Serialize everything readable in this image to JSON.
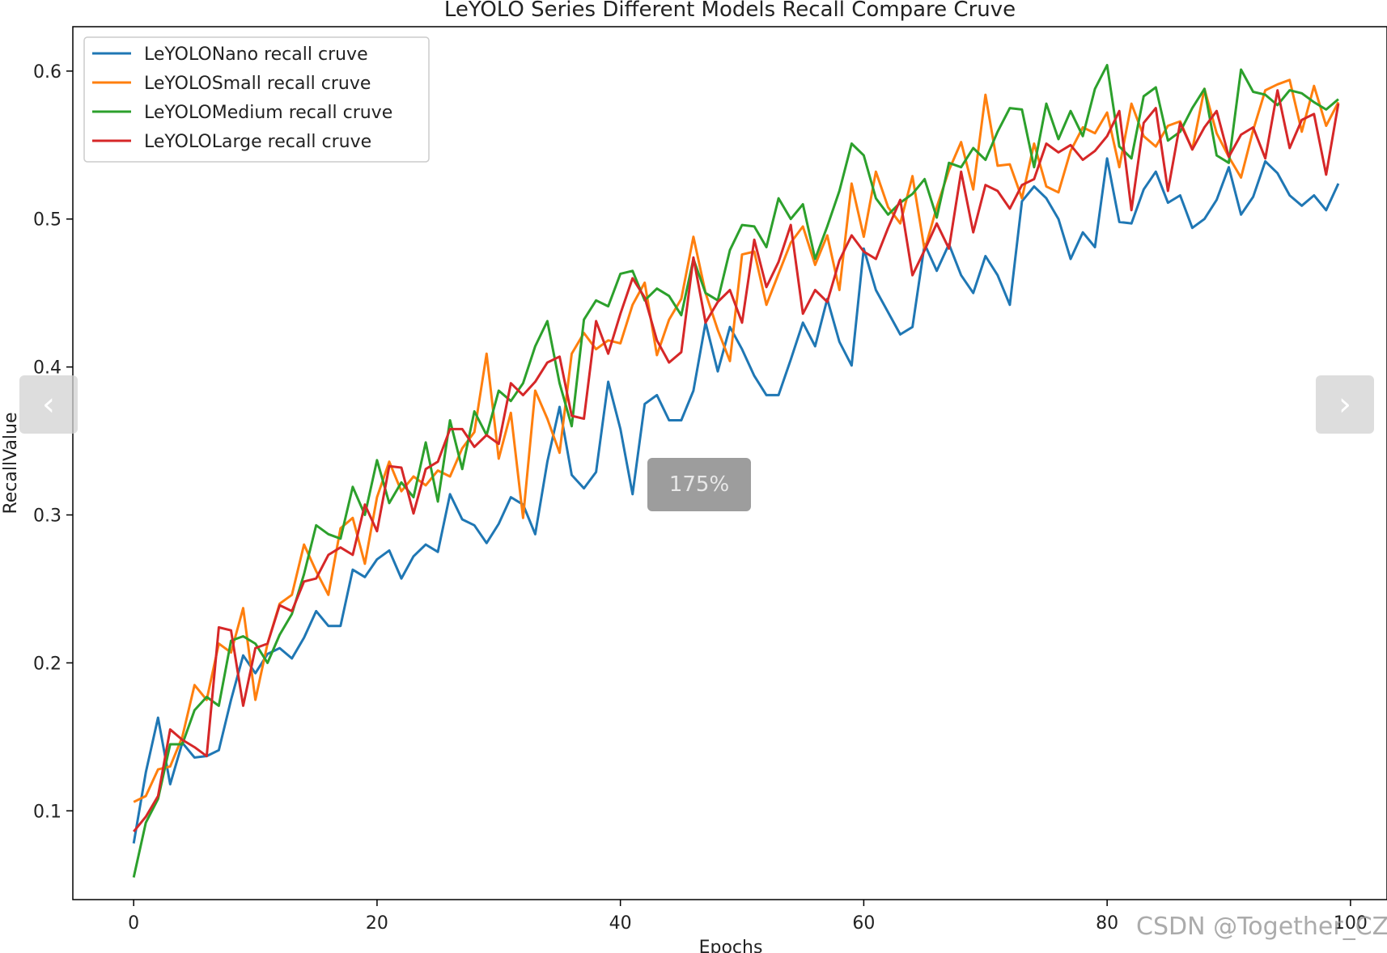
{
  "chart_data": {
    "type": "line",
    "title": "LeYOLO Series Different Models Recall Compare Cruve",
    "xlabel": "Epochs",
    "ylabel": "RecallValue",
    "xlim": [
      -5,
      103
    ],
    "ylim": [
      0.04,
      0.63
    ],
    "xticks": [
      0,
      20,
      40,
      60,
      80,
      100
    ],
    "yticks": [
      0.1,
      0.2,
      0.3,
      0.4,
      0.5,
      0.6
    ],
    "grid": false,
    "legend_position": "top-left",
    "series": [
      {
        "name": "LeYOLONano recall cruve",
        "color": "#1f77b4",
        "values": [
          0.078,
          0.126,
          0.163,
          0.118,
          0.146,
          0.136,
          0.137,
          0.141,
          0.175,
          0.205,
          0.193,
          0.206,
          0.21,
          0.203,
          0.217,
          0.235,
          0.225,
          0.225,
          0.263,
          0.258,
          0.27,
          0.276,
          0.257,
          0.272,
          0.28,
          0.275,
          0.314,
          0.297,
          0.293,
          0.281,
          0.294,
          0.312,
          0.307,
          0.287,
          0.336,
          0.373,
          0.327,
          0.318,
          0.329,
          0.39,
          0.358,
          0.314,
          0.375,
          0.381,
          0.364,
          0.364,
          0.384,
          0.43,
          0.397,
          0.427,
          0.412,
          0.394,
          0.381,
          0.381,
          0.405,
          0.43,
          0.414,
          0.446,
          0.417,
          0.401,
          0.48,
          0.452,
          0.437,
          0.422,
          0.427,
          0.483,
          0.465,
          0.483,
          0.462,
          0.45,
          0.475,
          0.462,
          0.442,
          0.512,
          0.522,
          0.514,
          0.5,
          0.473,
          0.491,
          0.481,
          0.541,
          0.498,
          0.497,
          0.52,
          0.532,
          0.511,
          0.516,
          0.494,
          0.5,
          0.513,
          0.535,
          0.503,
          0.515,
          0.539,
          0.531,
          0.516,
          0.509,
          0.516,
          0.506,
          0.524
        ]
      },
      {
        "name": "LeYOLOSmall recall cruve",
        "color": "#ff7f0e",
        "values": [
          0.106,
          0.11,
          0.128,
          0.13,
          0.15,
          0.185,
          0.175,
          0.213,
          0.207,
          0.237,
          0.175,
          0.213,
          0.24,
          0.246,
          0.28,
          0.262,
          0.246,
          0.291,
          0.298,
          0.267,
          0.312,
          0.336,
          0.316,
          0.326,
          0.32,
          0.33,
          0.326,
          0.345,
          0.356,
          0.409,
          0.338,
          0.369,
          0.298,
          0.384,
          0.365,
          0.342,
          0.409,
          0.423,
          0.412,
          0.418,
          0.416,
          0.442,
          0.457,
          0.408,
          0.432,
          0.446,
          0.488,
          0.45,
          0.425,
          0.404,
          0.476,
          0.478,
          0.442,
          0.463,
          0.484,
          0.495,
          0.469,
          0.489,
          0.452,
          0.524,
          0.488,
          0.532,
          0.508,
          0.497,
          0.529,
          0.479,
          0.508,
          0.533,
          0.552,
          0.52,
          0.584,
          0.536,
          0.537,
          0.514,
          0.551,
          0.522,
          0.518,
          0.546,
          0.562,
          0.558,
          0.572,
          0.535,
          0.578,
          0.556,
          0.549,
          0.563,
          0.566,
          0.547,
          0.588,
          0.558,
          0.542,
          0.528,
          0.56,
          0.587,
          0.591,
          0.594,
          0.559,
          0.59,
          0.563,
          0.579
        ]
      },
      {
        "name": "LeYOLOMedium recall cruve",
        "color": "#2ca02c",
        "values": [
          0.055,
          0.092,
          0.108,
          0.145,
          0.145,
          0.168,
          0.177,
          0.171,
          0.215,
          0.218,
          0.213,
          0.2,
          0.219,
          0.233,
          0.26,
          0.293,
          0.287,
          0.284,
          0.319,
          0.3,
          0.337,
          0.308,
          0.322,
          0.312,
          0.349,
          0.309,
          0.364,
          0.331,
          0.37,
          0.354,
          0.384,
          0.377,
          0.389,
          0.414,
          0.431,
          0.389,
          0.36,
          0.432,
          0.445,
          0.441,
          0.463,
          0.465,
          0.445,
          0.453,
          0.448,
          0.435,
          0.473,
          0.45,
          0.445,
          0.479,
          0.496,
          0.495,
          0.481,
          0.514,
          0.5,
          0.51,
          0.473,
          0.495,
          0.519,
          0.551,
          0.543,
          0.514,
          0.503,
          0.511,
          0.517,
          0.527,
          0.501,
          0.538,
          0.535,
          0.548,
          0.54,
          0.559,
          0.575,
          0.574,
          0.535,
          0.578,
          0.554,
          0.573,
          0.556,
          0.588,
          0.604,
          0.549,
          0.541,
          0.583,
          0.589,
          0.553,
          0.559,
          0.575,
          0.588,
          0.543,
          0.538,
          0.601,
          0.586,
          0.584,
          0.577,
          0.587,
          0.585,
          0.579,
          0.574,
          0.581
        ]
      },
      {
        "name": "LeYOLOLarge recall cruve",
        "color": "#d62728",
        "values": [
          0.086,
          0.096,
          0.11,
          0.155,
          0.148,
          0.143,
          0.137,
          0.224,
          0.222,
          0.171,
          0.21,
          0.213,
          0.239,
          0.235,
          0.255,
          0.257,
          0.273,
          0.278,
          0.273,
          0.307,
          0.289,
          0.333,
          0.332,
          0.301,
          0.331,
          0.336,
          0.358,
          0.358,
          0.346,
          0.354,
          0.348,
          0.389,
          0.381,
          0.39,
          0.403,
          0.407,
          0.367,
          0.365,
          0.431,
          0.409,
          0.436,
          0.46,
          0.447,
          0.418,
          0.403,
          0.41,
          0.474,
          0.43,
          0.444,
          0.452,
          0.43,
          0.486,
          0.454,
          0.471,
          0.496,
          0.436,
          0.452,
          0.444,
          0.472,
          0.489,
          0.478,
          0.473,
          0.494,
          0.513,
          0.462,
          0.479,
          0.497,
          0.48,
          0.532,
          0.491,
          0.523,
          0.519,
          0.507,
          0.523,
          0.527,
          0.551,
          0.545,
          0.55,
          0.54,
          0.546,
          0.556,
          0.573,
          0.506,
          0.565,
          0.575,
          0.519,
          0.565,
          0.547,
          0.562,
          0.573,
          0.542,
          0.557,
          0.562,
          0.541,
          0.587,
          0.548,
          0.567,
          0.571,
          0.53,
          0.578
        ]
      }
    ]
  },
  "overlay": {
    "prev_icon": "‹",
    "next_icon": "›",
    "zoom_level": "175%",
    "watermark": "CSDN @Together_CZ"
  }
}
